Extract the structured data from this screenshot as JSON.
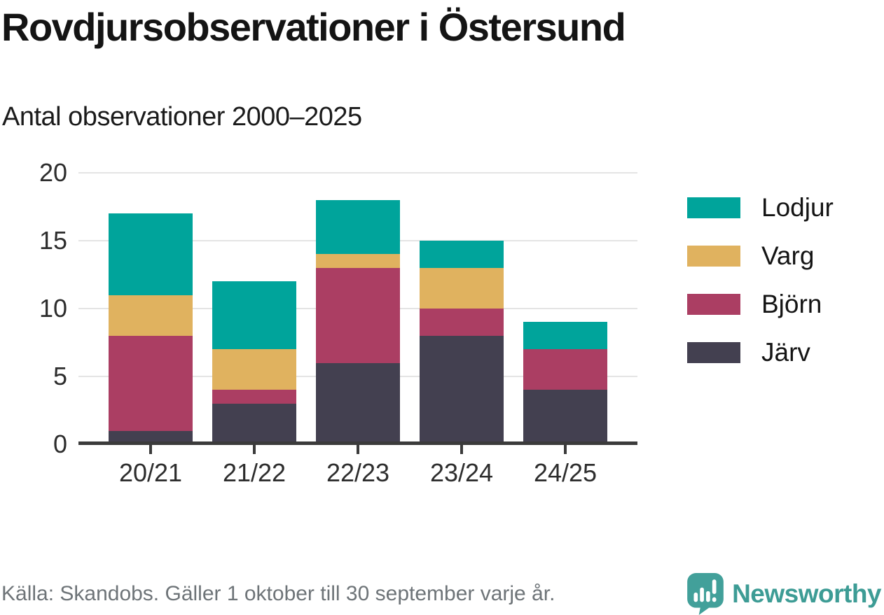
{
  "header": {
    "title": "Rovdjursobservationer i Östersund",
    "subtitle": "Antal observationer 2000–2025"
  },
  "chart_data": {
    "type": "bar",
    "stacked": true,
    "title": "Rovdjursobservationer i Östersund",
    "subtitle": "Antal observationer 2000–2025",
    "categories": [
      "20/21",
      "21/22",
      "22/23",
      "23/24",
      "24/25"
    ],
    "series": [
      {
        "name": "Järv",
        "color": "#434050",
        "values": [
          1,
          3,
          6,
          8,
          4
        ]
      },
      {
        "name": "Björn",
        "color": "#ab3e63",
        "values": [
          7,
          1,
          7,
          2,
          3
        ]
      },
      {
        "name": "Varg",
        "color": "#e0b25f",
        "values": [
          3,
          3,
          1,
          3,
          0
        ]
      },
      {
        "name": "Lodjur",
        "color": "#00a49b",
        "values": [
          6,
          5,
          4,
          2,
          2
        ]
      }
    ],
    "stack_order_bottom_to_top": [
      "Järv",
      "Björn",
      "Varg",
      "Lodjur"
    ],
    "legend_order": [
      "Lodjur",
      "Varg",
      "Björn",
      "Järv"
    ],
    "legend_position": "right",
    "ylim": [
      0,
      20
    ],
    "yticks": [
      0,
      5,
      10,
      15,
      20
    ],
    "grid": "horizontal"
  },
  "footer": {
    "source": "Källa: Skandobs. Gäller 1 oktober till 30 september varje år.",
    "brand": "Newsworthy"
  },
  "colors": {
    "grid": "#e4e4e4",
    "axis": "#3b3b3b",
    "brand_teal": "#3d9c95",
    "logo_bubble": "#42a09a",
    "footer_text": "#6e7478"
  }
}
